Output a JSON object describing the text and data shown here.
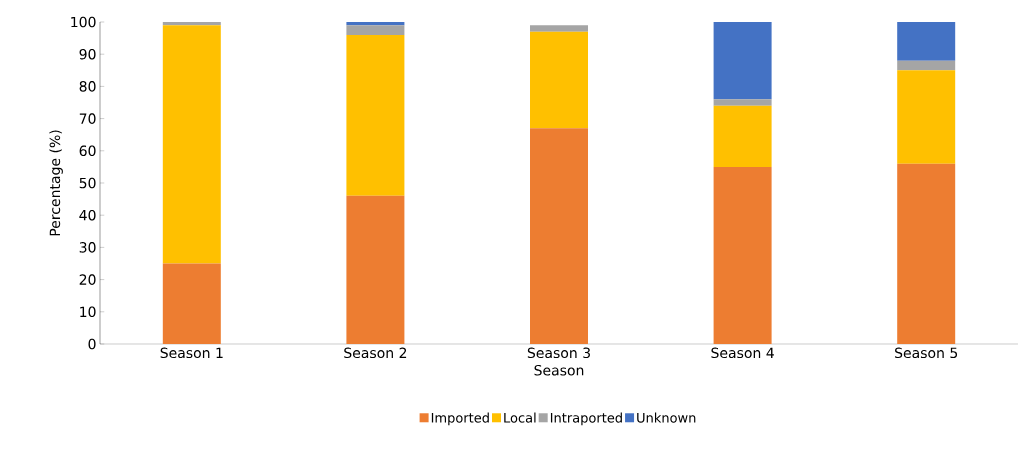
{
  "chart_data": {
    "type": "bar",
    "stacked": true,
    "xlabel": "Season",
    "ylabel": "Percentage (%)",
    "categories": [
      "Season 1",
      "Season 2",
      "Season 3",
      "Season 4",
      "Season 5"
    ],
    "series": [
      {
        "name": "Imported",
        "color": "#ed7d31",
        "values": [
          25,
          46,
          67,
          55,
          56
        ]
      },
      {
        "name": "Local",
        "color": "#ffc000",
        "values": [
          74,
          50,
          30,
          19,
          29
        ]
      },
      {
        "name": "Intraported",
        "color": "#a5a5a5",
        "values": [
          1,
          3,
          2,
          2,
          3
        ]
      },
      {
        "name": "Unknown",
        "color": "#4472c4",
        "values": [
          0,
          1,
          0,
          24,
          12
        ]
      }
    ],
    "ylim": [
      0,
      100
    ],
    "yticks": [
      0,
      10,
      20,
      30,
      40,
      50,
      60,
      70,
      80,
      90,
      100
    ],
    "grid": false,
    "legend": "bottom"
  }
}
